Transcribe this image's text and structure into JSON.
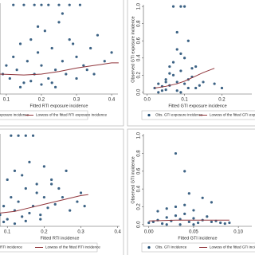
{
  "chart_data": [
    {
      "type": "scatter",
      "x_label": "Fitted RTI exposure incidence",
      "xlim": [
        0.082,
        0.418
      ],
      "ylim": [
        -0.03,
        1.02
      ],
      "xticks": [
        0.1,
        0.2,
        0.3,
        0.4
      ],
      "series": [
        {
          "name": "Obs. RTI exposure incidence",
          "type": "scatter",
          "color": "#1a476f",
          "x": [
            0.09,
            0.1,
            0.11,
            0.12,
            0.13,
            0.14,
            0.15,
            0.16,
            0.17,
            0.18,
            0.19,
            0.2,
            0.21,
            0.22,
            0.23,
            0.24,
            0.25,
            0.26,
            0.27,
            0.28,
            0.3,
            0.32,
            0.34,
            0.36,
            0.38,
            0.4,
            0.12,
            0.15,
            0.18,
            0.2,
            0.22,
            0.25,
            0.28,
            0.31,
            0.14,
            0.17,
            0.2,
            0.23,
            0.26,
            0.3,
            0.33,
            0.19,
            0.24,
            0.29,
            0.35
          ],
          "values": [
            0.2,
            0.3,
            0.15,
            0.4,
            0.25,
            0.55,
            0.1,
            0.35,
            0.6,
            0.2,
            0.45,
            0.3,
            0.7,
            0.15,
            0.5,
            0.25,
            0.8,
            0.35,
            0.2,
            0.6,
            0.4,
            0.3,
            0.5,
            0.65,
            0.35,
            0.45,
            1,
            1,
            1,
            1,
            1,
            1,
            1,
            1,
            0.05,
            0.12,
            0.08,
            0.1,
            0.9,
            0.15,
            0.25,
            0.75,
            0.05,
            0.55,
            0.2
          ]
        },
        {
          "name": "Lowess of the fitted RTI exposure incidence",
          "type": "line",
          "color": "#90353b",
          "x": [
            0.08,
            0.15,
            0.2,
            0.25,
            0.3,
            0.35,
            0.4,
            0.42
          ],
          "values": [
            0.2,
            0.19,
            0.2,
            0.23,
            0.27,
            0.3,
            0.33,
            0.33
          ]
        }
      ]
    },
    {
      "type": "scatter",
      "x_label": "Fitted GTI exposure incidence",
      "y_label": "Observed GTI exposure incidence",
      "xlim": [
        -0.01,
        0.28
      ],
      "ylim": [
        -0.02,
        1.02
      ],
      "xticks": [
        {
          "value": 0,
          "label": "0.0"
        },
        0.1,
        0.2
      ],
      "yticks": [
        {
          "value": 0,
          "label": "0.0"
        },
        0.2,
        0.4,
        0.6,
        0.8,
        {
          "value": 1,
          "label": "1.0"
        }
      ],
      "series": [
        {
          "name": "Obs. GTI exposure incidence",
          "type": "scatter",
          "color": "#1a476f",
          "x": [
            0.02,
            0.03,
            0.04,
            0.05,
            0.06,
            0.07,
            0.08,
            0.09,
            0.1,
            0.11,
            0.12,
            0.13,
            0.14,
            0.15,
            0.03,
            0.05,
            0.07,
            0.09,
            0.11,
            0.04,
            0.06,
            0.08,
            0.1,
            0.12,
            0.07,
            0.09,
            0.1,
            0.08,
            0.06,
            0.05,
            0.11,
            0.13,
            0.18,
            0.2,
            0.08,
            0.09
          ],
          "values": [
            0.05,
            0.1,
            0.02,
            0.15,
            0.08,
            0.2,
            0.12,
            0.25,
            0.1,
            0.05,
            0.18,
            0.3,
            0.08,
            0.12,
            0,
            0.03,
            0.35,
            0.45,
            0.6,
            0.07,
            0.22,
            0.5,
            0.4,
            0.28,
            1,
            1,
            1,
            0.7,
            0.3,
            0.12,
            0.15,
            0.05,
            0.1,
            0.05,
            0.02,
            0
          ]
        },
        {
          "name": "Lowess of the fitted GTI exposure incidence",
          "type": "line",
          "color": "#90353b",
          "x": [
            0.02,
            0.05,
            0.08,
            0.1,
            0.12,
            0.15,
            0.18
          ],
          "values": [
            0.05,
            0.07,
            0.1,
            0.13,
            0.17,
            0.23,
            0.28
          ]
        }
      ]
    },
    {
      "type": "scatter",
      "x_label": "Fitted RTI incidence",
      "xlim": [
        0.08,
        0.405
      ],
      "ylim": [
        -0.03,
        1.02
      ],
      "xticks": [
        0.1,
        0.2,
        0.3,
        0.4
      ],
      "series": [
        {
          "name": "Obs. RTI incidence",
          "type": "scatter",
          "color": "#1a476f",
          "x": [
            0.08,
            0.09,
            0.1,
            0.11,
            0.12,
            0.13,
            0.14,
            0.15,
            0.16,
            0.17,
            0.18,
            0.19,
            0.2,
            0.21,
            0.22,
            0.23,
            0.25,
            0.27,
            0.29,
            0.31,
            0.1,
            0.12,
            0.14,
            0.16,
            0.18,
            0.2,
            0.22,
            0.24,
            0.11,
            0.13,
            0.15,
            0.17,
            0.09,
            0.12,
            0.15,
            0.19,
            0.26,
            0.3
          ],
          "values": [
            0.1,
            0.2,
            0.05,
            0.3,
            0.15,
            0.25,
            0.08,
            0.4,
            0.12,
            0.2,
            0.35,
            0.1,
            0.3,
            0.18,
            0.45,
            0.22,
            0.3,
            0.15,
            0.25,
            0.2,
            0.5,
            0.6,
            0.55,
            0.7,
            0.45,
            0.65,
            0.5,
            0.4,
            1,
            1,
            1,
            1,
            0.02,
            0,
            0.03,
            0.05,
            0.6,
            0.35
          ]
        },
        {
          "name": "Lowess of the fitted RTI incidence",
          "type": "line",
          "color": "#90353b",
          "x": [
            0.08,
            0.12,
            0.16,
            0.2,
            0.25,
            0.3,
            0.32
          ],
          "values": [
            0.12,
            0.14,
            0.18,
            0.22,
            0.27,
            0.32,
            0.33
          ]
        }
      ]
    },
    {
      "type": "scatter",
      "x_label": "Fitted GTI incidence",
      "y_label": "Observed GTI incidence",
      "xlim": [
        -0.006,
        0.115
      ],
      "ylim": [
        -0.02,
        1.02
      ],
      "xticks": [
        {
          "value": 0,
          "label": "0.00"
        },
        0.05,
        {
          "value": 0.1,
          "label": "0.10"
        }
      ],
      "yticks": [
        {
          "value": 0,
          "label": "0.0"
        },
        0.2,
        0.4,
        0.6,
        0.8,
        {
          "value": 1,
          "label": "1.0"
        }
      ],
      "series": [
        {
          "name": "Obs. GTI incidence",
          "type": "scatter",
          "color": "#1a476f",
          "x": [
            0,
            0.005,
            0.01,
            0.015,
            0.02,
            0.025,
            0.03,
            0.035,
            0.04,
            0.045,
            0.05,
            0.055,
            0.06,
            0.065,
            0.07,
            0.075,
            0.08,
            0.085,
            0.09,
            0.01,
            0.02,
            0.03,
            0.04,
            0.05,
            0.03,
            0.04,
            0.045,
            0.06,
            0.035,
            0.05,
            0.02,
            0.07
          ],
          "values": [
            0.02,
            0.03,
            0.05,
            0.01,
            0.08,
            0.04,
            0.1,
            0.06,
            0.12,
            0.03,
            0.07,
            0.02,
            0.05,
            0.09,
            0.03,
            0.04,
            0.02,
            0.01,
            0.02,
            0.15,
            0.18,
            0.2,
            0.22,
            0.16,
            0.8,
            0.6,
            0.35,
            0.3,
            0,
            0,
            0,
            0.25
          ]
        },
        {
          "name": "Lowess of the fitted GTI incidence",
          "type": "line",
          "color": "#90353b",
          "x": [
            0,
            0.03,
            0.06,
            0.09
          ],
          "values": [
            0.04,
            0.05,
            0.05,
            0.05
          ]
        }
      ]
    }
  ]
}
